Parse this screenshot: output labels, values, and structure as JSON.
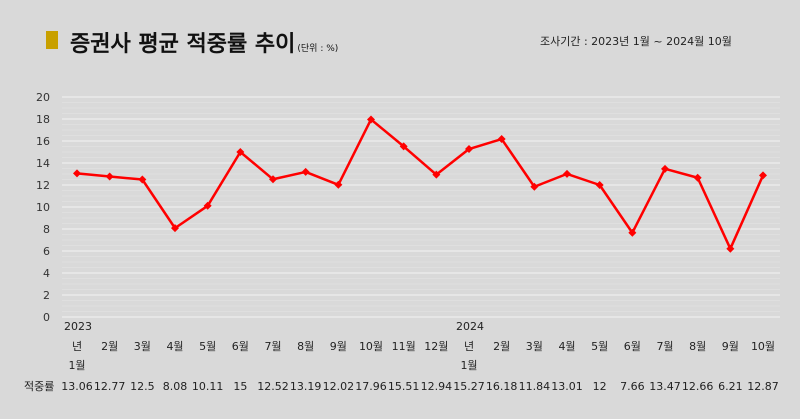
{
  "header": {
    "title": "증권사 평균 적중률 추이",
    "unit": "(단위 : %)",
    "period": "조사기간 : 2023년 1월 ~ 2024월 10월",
    "marker_color": "#c8a000"
  },
  "chart_data": {
    "type": "line",
    "title": "증권사 평균 적중률 추이",
    "categories": [
      "1월",
      "2월",
      "3월",
      "4월",
      "5월",
      "6월",
      "7월",
      "8월",
      "9월",
      "10월",
      "11월",
      "12월",
      "1월",
      "2월",
      "3월",
      "4월",
      "5월",
      "6월",
      "7월",
      "8월",
      "9월",
      "10월"
    ],
    "year_labels": [
      {
        "index": 0,
        "label": "2023"
      },
      {
        "index": 12,
        "label": "2024"
      }
    ],
    "row_label": "적중률",
    "value_labels": [
      "13.06",
      "12.77",
      "12.5",
      "8.08",
      "10.11",
      "15",
      "12.52",
      "13.19",
      "12.02",
      "17.96",
      "15.51",
      "12.94",
      "15.27",
      "16.18",
      "11.84",
      "13.01",
      "12",
      "7.66",
      "13.47",
      "12.66",
      "6.21",
      "12.87"
    ],
    "series": [
      {
        "values": [
          13.06,
          12.77,
          12.5,
          8.08,
          10.11,
          15,
          12.52,
          13.19,
          12.02,
          17.96,
          15.51,
          12.94,
          15.27,
          16.18,
          11.84,
          13.01,
          12,
          7.66,
          13.47,
          12.66,
          6.21,
          12.87
        ],
        "color": "#ff0000"
      }
    ],
    "ylim": [
      0,
      20
    ],
    "yticks": [
      0,
      2,
      4,
      6,
      8,
      10,
      12,
      14,
      16,
      18,
      20
    ],
    "grid": true
  }
}
